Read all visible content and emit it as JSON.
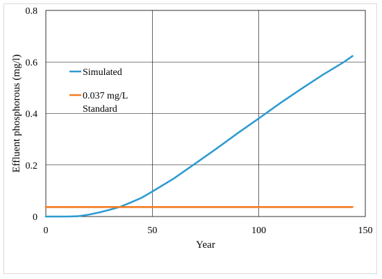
{
  "chart_data": {
    "type": "line",
    "xlabel": "Year",
    "ylabel": "Effluent phosphorous (mg/l)",
    "xlim": [
      0,
      150
    ],
    "ylim": [
      0,
      0.8
    ],
    "xticks": [
      0,
      50,
      100,
      150
    ],
    "yticks": [
      0,
      0.2,
      0.4,
      0.6,
      0.8
    ],
    "ytick_labels": [
      "0",
      "0.2",
      "0.4",
      "0.6",
      "0.8"
    ],
    "grid": true,
    "legend_position": "upper-left inside",
    "series": [
      {
        "name": "Simulated",
        "color": "#2e9bd1",
        "x": [
          0,
          5,
          10,
          15,
          20,
          25,
          30,
          35,
          40,
          45,
          50,
          60,
          70,
          80,
          90,
          100,
          110,
          120,
          130,
          140,
          144
        ],
        "y": [
          0,
          0,
          0,
          0.001,
          0.007,
          0.016,
          0.026,
          0.038,
          0.055,
          0.073,
          0.097,
          0.147,
          0.205,
          0.263,
          0.323,
          0.381,
          0.44,
          0.496,
          0.55,
          0.6,
          0.623
        ]
      },
      {
        "name": "0.037 mg/L Standard",
        "legend_lines": [
          "0.037 mg/L",
          "Standard"
        ],
        "color": "#f47a20",
        "x": [
          0,
          144
        ],
        "y": [
          0.037,
          0.037
        ]
      }
    ]
  }
}
